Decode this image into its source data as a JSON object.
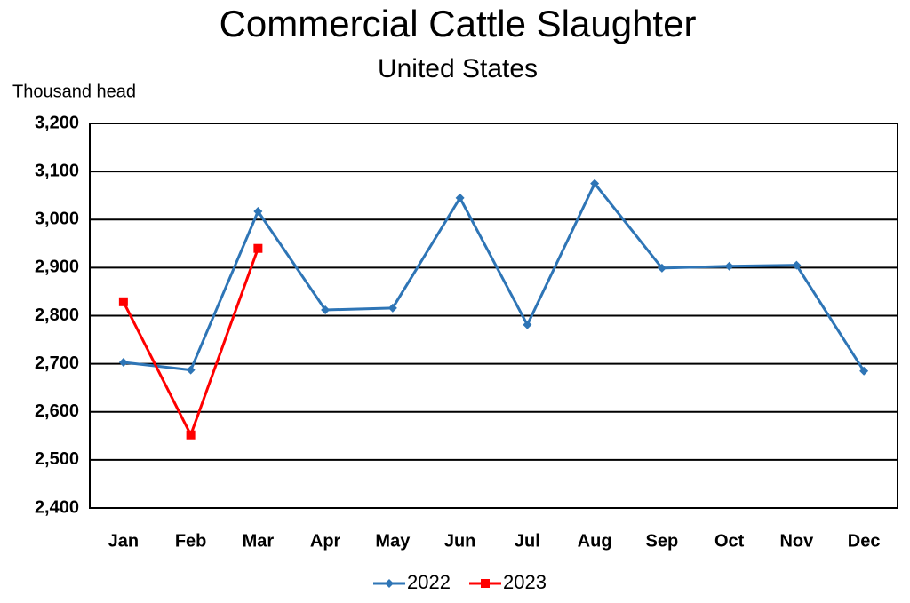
{
  "chart_data": {
    "type": "line",
    "title": "Commercial Cattle Slaughter",
    "subtitle": "United States",
    "y_label": "Thousand head",
    "categories": [
      "Jan",
      "Feb",
      "Mar",
      "Apr",
      "May",
      "Jun",
      "Jul",
      "Aug",
      "Sep",
      "Oct",
      "Nov",
      "Dec"
    ],
    "series": [
      {
        "name": "2022",
        "color": "#2e75b6",
        "marker": "diamond",
        "values": [
          2703,
          2687,
          3017,
          2812,
          2816,
          3045,
          2781,
          3075,
          2899,
          2903,
          2905,
          2685
        ]
      },
      {
        "name": "2023",
        "color": "#ff0000",
        "marker": "square",
        "values": [
          2829,
          2552,
          2940,
          null,
          null,
          null,
          null,
          null,
          null,
          null,
          null,
          null
        ]
      }
    ],
    "ylim": [
      2400,
      3200
    ],
    "yticks": [
      {
        "value": 2400,
        "label": "2,400"
      },
      {
        "value": 2500,
        "label": "2,500"
      },
      {
        "value": 2600,
        "label": "2,600"
      },
      {
        "value": 2700,
        "label": "2,700"
      },
      {
        "value": 2800,
        "label": "2,800"
      },
      {
        "value": 2900,
        "label": "2,900"
      },
      {
        "value": 3000,
        "label": "3,000"
      },
      {
        "value": 3100,
        "label": "3,100"
      },
      {
        "value": 3200,
        "label": "3,200"
      }
    ],
    "grid": true,
    "legend": "bottom"
  }
}
